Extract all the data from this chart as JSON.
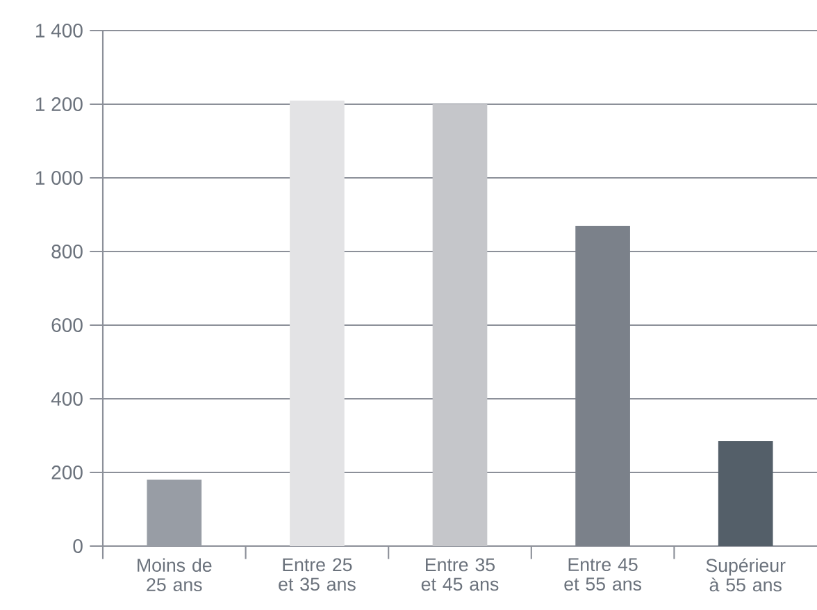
{
  "chart_data": {
    "type": "bar",
    "categories": [
      "Moins de 25 ans",
      "Entre 25 et 35 ans",
      "Entre 35 et 45 ans",
      "Entre 45 et 55 ans",
      "Supérieur à 55 ans"
    ],
    "values": [
      180,
      1210,
      1200,
      870,
      285
    ],
    "colors": [
      "#989da5",
      "#e3e3e5",
      "#c5c6ca",
      "#7b818a",
      "#545f69"
    ],
    "ylim": [
      0,
      1400
    ],
    "yticks": [
      0,
      200,
      400,
      600,
      800,
      {
        "value": 1000,
        "label": "1 000"
      },
      {
        "value": 1200,
        "label": "1 200"
      },
      {
        "value": 1400,
        "label": "1 400"
      }
    ],
    "grid": "y"
  }
}
